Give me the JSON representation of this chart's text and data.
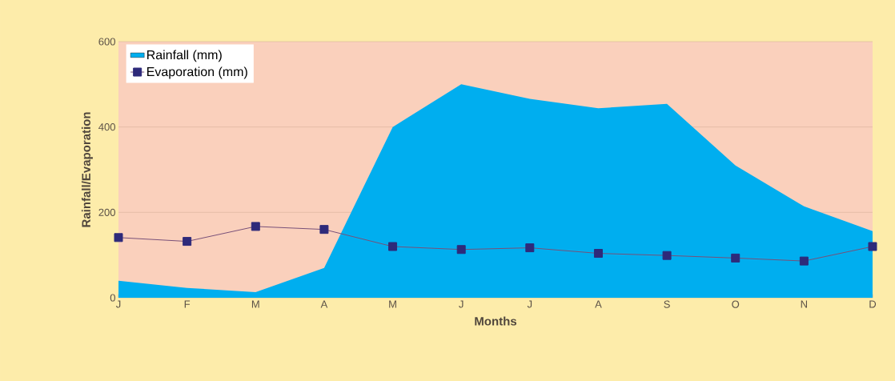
{
  "chart_data": {
    "type": "area",
    "xlabel": "Months",
    "ylabel": "Rainfall/Evaporation",
    "categories": [
      "J",
      "F",
      "M",
      "A",
      "M",
      "J",
      "J",
      "A",
      "S",
      "O",
      "N",
      "D"
    ],
    "series": [
      {
        "name": "Rainfall (mm)",
        "color": "#00aeef",
        "values": [
          40,
          23,
          13,
          70,
          400,
          500,
          466,
          444,
          454,
          310,
          214,
          156
        ]
      },
      {
        "name": "Evaporation (mm)",
        "type": "line",
        "color": "#2e2a7a",
        "marker": "square",
        "values": [
          141,
          132,
          167,
          160,
          120,
          113,
          117,
          104,
          99,
          93,
          86,
          120
        ]
      }
    ],
    "ylim": [
      0,
      600
    ],
    "yticks": [
      0,
      200,
      400,
      600
    ],
    "grid": "y",
    "legend": "top left"
  }
}
